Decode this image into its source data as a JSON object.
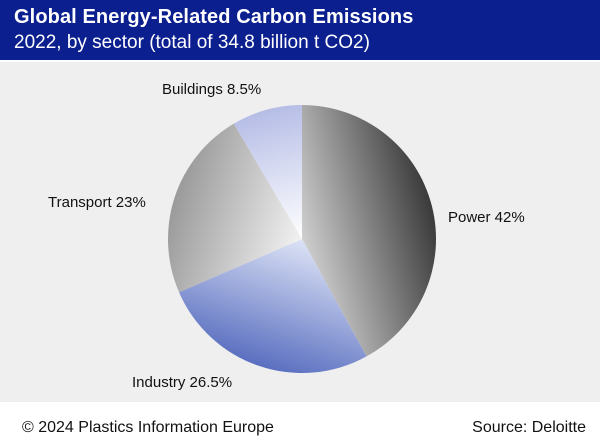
{
  "header": {
    "title": "Global Energy-Related Carbon Emissions",
    "subtitle": "2022, by sector (total of 34.8 billion t CO2)"
  },
  "footer": {
    "copyright": "© 2024 Plastics Information Europe",
    "source": "Source: Deloitte"
  },
  "colors": {
    "header_bg": "#0b1f8f",
    "chart_bg": "#efefef"
  },
  "chart_data": {
    "type": "pie",
    "title": "Global Energy-Related Carbon Emissions",
    "subtitle": "2022, by sector (total of 34.8 billion t CO2)",
    "slices": [
      {
        "name": "Power",
        "value": 42,
        "label": "Power 42%",
        "color_light": "#cfcfcf",
        "color_dark": "#3a3a3a"
      },
      {
        "name": "Industry",
        "value": 26.5,
        "label": "Industry 26.5%",
        "color_light": "#dde3f6",
        "color_dark": "#5a6fc0"
      },
      {
        "name": "Transport",
        "value": 23,
        "label": "Transport 23%",
        "color_light": "#f2f2f2",
        "color_dark": "#9a9a9a"
      },
      {
        "name": "Buildings",
        "value": 8.5,
        "label": "Buildings 8.5%",
        "color_light": "#ffffff",
        "color_dark": "#b6bde6"
      }
    ],
    "start_angle_deg": 0,
    "direction": "clockwise"
  }
}
